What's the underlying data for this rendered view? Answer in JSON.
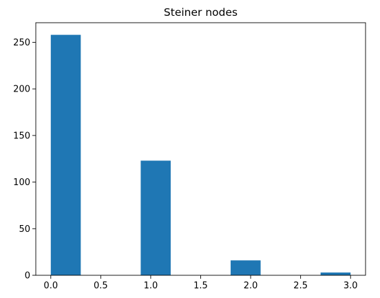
{
  "chart_data": {
    "type": "bar",
    "title": "Steiner nodes",
    "xlabel": "",
    "ylabel": "",
    "bins": [
      {
        "start": 0.0,
        "end": 0.3,
        "count": 258
      },
      {
        "start": 0.3,
        "end": 0.6,
        "count": 0
      },
      {
        "start": 0.6,
        "end": 0.9,
        "count": 0
      },
      {
        "start": 0.9,
        "end": 1.2,
        "count": 123
      },
      {
        "start": 1.2,
        "end": 1.5,
        "count": 0
      },
      {
        "start": 1.5,
        "end": 1.8,
        "count": 0
      },
      {
        "start": 1.8,
        "end": 2.1,
        "count": 16
      },
      {
        "start": 2.1,
        "end": 2.4,
        "count": 0
      },
      {
        "start": 2.4,
        "end": 2.7,
        "count": 0
      },
      {
        "start": 2.7,
        "end": 3.0,
        "count": 3
      }
    ],
    "xlim": [
      -0.15,
      3.15
    ],
    "ylim": [
      0,
      271
    ],
    "xticks": [
      0.0,
      0.5,
      1.0,
      1.5,
      2.0,
      2.5,
      3.0
    ],
    "xtick_labels": [
      "0.0",
      "0.5",
      "1.0",
      "1.5",
      "2.0",
      "2.5",
      "3.0"
    ],
    "yticks": [
      0,
      50,
      100,
      150,
      200,
      250
    ],
    "ytick_labels": [
      "0",
      "50",
      "100",
      "150",
      "200",
      "250"
    ],
    "bar_color": "#1f77b4",
    "grid": false
  }
}
